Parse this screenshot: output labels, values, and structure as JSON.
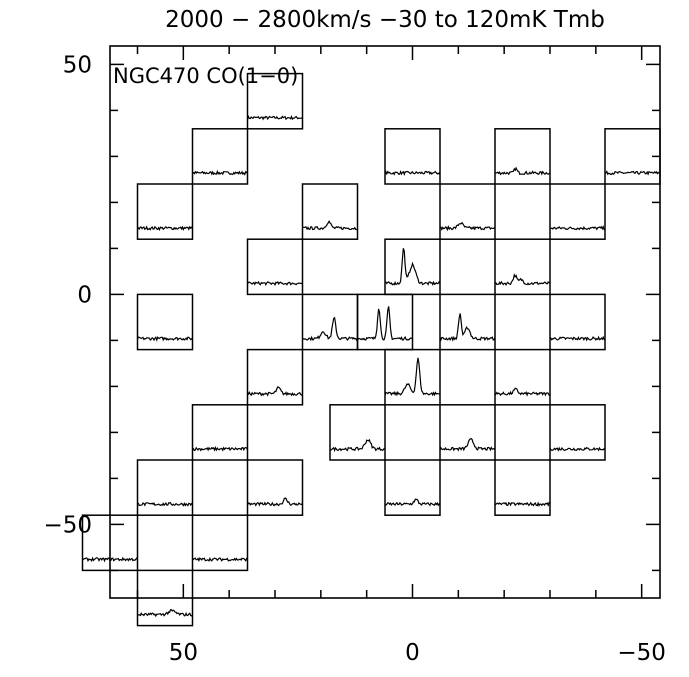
{
  "chart_data": {
    "type": "line",
    "title": "2000 − 2800km/s −30 to 120mK Tmb",
    "annotation": "NGC470 CO(1−0)",
    "xlabel": "",
    "ylabel": "",
    "xlim": [
      66,
      -54
    ],
    "ylim": [
      -66,
      54
    ],
    "xaxis_reversed": true,
    "x_tick_labels": [
      {
        "value": 50,
        "text": "50"
      },
      {
        "value": 0,
        "text": "0"
      },
      {
        "value": -50,
        "text": "−50"
      }
    ],
    "y_tick_labels": [
      {
        "value": 50,
        "text": "50"
      },
      {
        "value": 0,
        "text": "0"
      },
      {
        "value": -50,
        "text": "−50"
      }
    ],
    "x_major_ticks": [
      50,
      0,
      -50
    ],
    "x_minor_ticks": [
      60,
      40,
      30,
      20,
      10,
      -10,
      -20,
      -30,
      -40
    ],
    "y_major_ticks": [
      50,
      0,
      -50
    ],
    "y_minor_ticks": [
      40,
      30,
      20,
      10,
      -10,
      -20,
      -30,
      -40,
      -60
    ],
    "cell_size": 12,
    "spectrum_velocity_range": [
      2000,
      2800
    ],
    "spectrum_velocity_unit": "km/s",
    "spectrum_intensity_range": [
      -30,
      120
    ],
    "spectrum_intensity_unit": "mK",
    "grid": false,
    "spectra": [
      {
        "x": 30,
        "y": 42,
        "peaks": []
      },
      {
        "x": 42,
        "y": 30,
        "peaks": []
      },
      {
        "x": 0,
        "y": 30,
        "peaks": []
      },
      {
        "x": -24,
        "y": 30,
        "peaks": [
          {
            "v": 2300,
            "amp": 12,
            "w": 40
          }
        ]
      },
      {
        "x": -48,
        "y": 30,
        "peaks": []
      },
      {
        "x": 54,
        "y": 18,
        "peaks": []
      },
      {
        "x": 18,
        "y": 18,
        "peaks": [
          {
            "v": 2380,
            "amp": 18,
            "w": 60
          }
        ]
      },
      {
        "x": -12,
        "y": 18,
        "peaks": [
          {
            "v": 2300,
            "amp": 14,
            "w": 70
          }
        ]
      },
      {
        "x": -36,
        "y": 18,
        "peaks": []
      },
      {
        "x": 30,
        "y": 6,
        "peaks": []
      },
      {
        "x": 0,
        "y": 6,
        "peaks": [
          {
            "v": 2270,
            "amp": 95,
            "w": 40
          },
          {
            "v": 2400,
            "amp": 50,
            "w": 90
          }
        ]
      },
      {
        "x": -24,
        "y": 6,
        "peaks": [
          {
            "v": 2290,
            "amp": 22,
            "w": 50
          },
          {
            "v": 2380,
            "amp": 10,
            "w": 60
          }
        ]
      },
      {
        "x": 54,
        "y": -6,
        "peaks": []
      },
      {
        "x": 18,
        "y": -6,
        "peaks": [
          {
            "v": 2460,
            "amp": 55,
            "w": 50
          },
          {
            "v": 2300,
            "amp": 20,
            "w": 70
          }
        ]
      },
      {
        "x": 6,
        "y": -6,
        "peaks": [
          {
            "v": 2310,
            "amp": 85,
            "w": 40
          },
          {
            "v": 2450,
            "amp": 85,
            "w": 40
          }
        ]
      },
      {
        "x": -12,
        "y": -6,
        "peaks": [
          {
            "v": 2290,
            "amp": 68,
            "w": 40
          },
          {
            "v": 2400,
            "amp": 30,
            "w": 70
          }
        ]
      },
      {
        "x": -36,
        "y": -6,
        "peaks": []
      },
      {
        "x": 30,
        "y": -18,
        "peaks": [
          {
            "v": 2450,
            "amp": 16,
            "w": 60
          }
        ]
      },
      {
        "x": 0,
        "y": -18,
        "peaks": [
          {
            "v": 2480,
            "amp": 95,
            "w": 50
          },
          {
            "v": 2330,
            "amp": 25,
            "w": 80
          }
        ]
      },
      {
        "x": -24,
        "y": -18,
        "peaks": [
          {
            "v": 2300,
            "amp": 12,
            "w": 60
          }
        ]
      },
      {
        "x": 42,
        "y": -30,
        "peaks": []
      },
      {
        "x": 12,
        "y": -30,
        "peaks": [
          {
            "v": 2550,
            "amp": 25,
            "w": 80
          }
        ]
      },
      {
        "x": -12,
        "y": -30,
        "peaks": [
          {
            "v": 2450,
            "amp": 25,
            "w": 80
          }
        ]
      },
      {
        "x": -36,
        "y": -30,
        "peaks": []
      },
      {
        "x": 54,
        "y": -42,
        "peaks": []
      },
      {
        "x": 30,
        "y": -42,
        "peaks": [
          {
            "v": 2550,
            "amp": 14,
            "w": 60
          }
        ]
      },
      {
        "x": 0,
        "y": -42,
        "peaks": [
          {
            "v": 2450,
            "amp": 12,
            "w": 60
          }
        ]
      },
      {
        "x": -24,
        "y": -42,
        "peaks": []
      },
      {
        "x": 66,
        "y": -54,
        "peaks": []
      },
      {
        "x": 42,
        "y": -54,
        "peaks": []
      },
      {
        "x": 54,
        "y": -66,
        "peaks": [
          {
            "v": 2500,
            "amp": 10,
            "w": 100
          }
        ]
      }
    ]
  }
}
